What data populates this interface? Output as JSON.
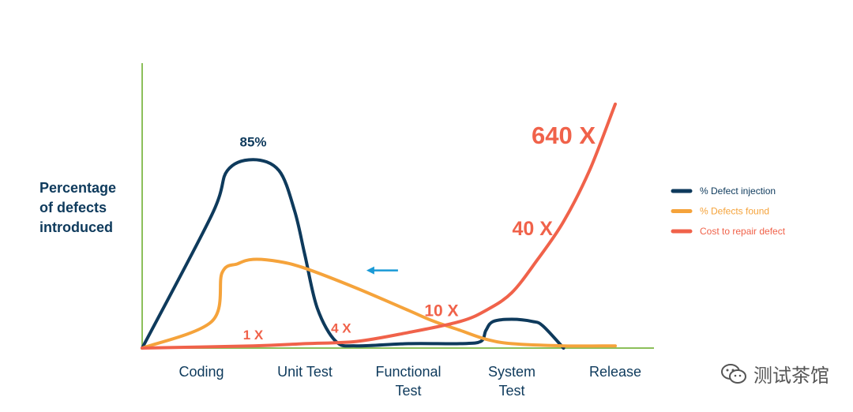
{
  "chart_data": {
    "type": "line",
    "categories": [
      "Coding",
      "Unit Test",
      "Functional Test",
      "System Test",
      "Release"
    ],
    "category_lines": [
      [
        "Coding"
      ],
      [
        "Unit Test"
      ],
      [
        "Functional",
        "Test"
      ],
      [
        "System",
        "Test"
      ],
      [
        "Release"
      ]
    ],
    "ylabel_lines": [
      "Percentage",
      "of defects",
      "introduced"
    ],
    "ylabel": "Percentage of defects introduced",
    "grid": false,
    "legend_position": "right",
    "series": [
      {
        "name": "% Defect injection",
        "color": "#0e3a5c",
        "points": [
          [
            0.0,
            0
          ],
          [
            0.1,
            60
          ],
          [
            0.25,
            80
          ],
          [
            0.5,
            85
          ],
          [
            0.75,
            80
          ],
          [
            0.9,
            62
          ],
          [
            1.0,
            42
          ],
          [
            1.12,
            18
          ],
          [
            1.3,
            3
          ],
          [
            1.5,
            1
          ],
          [
            2.0,
            2
          ],
          [
            2.5,
            2
          ],
          [
            2.7,
            3
          ],
          [
            2.75,
            8
          ],
          [
            2.82,
            12
          ],
          [
            3.0,
            13
          ],
          [
            3.2,
            12
          ],
          [
            3.3,
            10
          ],
          [
            3.5,
            0
          ]
        ]
      },
      {
        "name": "% Defects found",
        "color": "#f5a33b",
        "points": [
          [
            0.0,
            0
          ],
          [
            0.1,
            12
          ],
          [
            0.2,
            34
          ],
          [
            0.35,
            38
          ],
          [
            0.5,
            40
          ],
          [
            0.75,
            39
          ],
          [
            1.0,
            36
          ],
          [
            1.5,
            27
          ],
          [
            2.0,
            17
          ],
          [
            2.25,
            12
          ],
          [
            2.5,
            8
          ],
          [
            2.75,
            4
          ],
          [
            3.0,
            2
          ],
          [
            3.5,
            1
          ],
          [
            4.0,
            1
          ]
        ]
      },
      {
        "name": "Cost to repair defect",
        "color": "#f0624a",
        "points": [
          [
            0.0,
            0
          ],
          [
            0.5,
            1
          ],
          [
            1.0,
            2
          ],
          [
            1.5,
            3
          ],
          [
            2.0,
            7
          ],
          [
            2.5,
            12
          ],
          [
            2.75,
            17
          ],
          [
            3.0,
            25
          ],
          [
            3.25,
            40
          ],
          [
            3.5,
            57
          ],
          [
            3.75,
            80
          ],
          [
            4.0,
            110
          ]
        ]
      }
    ],
    "annotations": [
      {
        "text": "85%",
        "x": 0.5,
        "y": 93,
        "color": "#0e3a5c",
        "size": 17
      },
      {
        "text": "1 X",
        "x": 0.5,
        "y": 6,
        "color": "#f0624a",
        "size": 17
      },
      {
        "text": "4 X",
        "x": 1.35,
        "y": 9,
        "color": "#f0624a",
        "size": 17
      },
      {
        "text": "10 X",
        "x": 2.32,
        "y": 17,
        "color": "#f0624a",
        "size": 21
      },
      {
        "text": "40 X",
        "x": 3.2,
        "y": 54,
        "color": "#f0624a",
        "size": 25
      },
      {
        "text": "640 X",
        "x": 3.5,
        "y": 96,
        "color": "#f0624a",
        "size": 31
      }
    ],
    "arrow": {
      "direction": "left",
      "color": "#1a9ad6",
      "x": 1.9,
      "y": 35
    }
  },
  "watermark": {
    "text": "测试茶馆"
  }
}
